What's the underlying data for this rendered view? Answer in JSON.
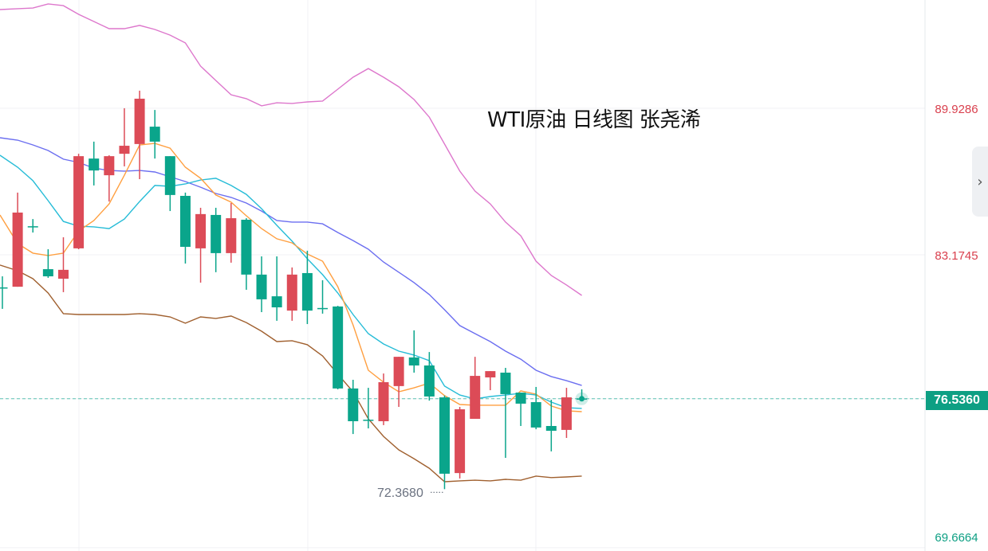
{
  "title": "WTI原油 日线图 张尧浠",
  "chart_data": {
    "type": "candlestick",
    "title": "WTI原油 日线图 张尧浠",
    "y_axis_ticks": [
      "89.9286",
      "83.1745",
      "76.5360",
      "69.6664"
    ],
    "y_tick_values": [
      89.9286,
      83.1745,
      76.536,
      69.6664
    ],
    "ylim": [
      69.6664,
      94.92
    ],
    "current_price": 76.536,
    "current_price_label": "76.5360",
    "min_label": "72.3680",
    "min_value": 72.368,
    "grid": true,
    "colors": {
      "up": "#dc4b57",
      "down": "#0aa58b",
      "upper_band": "#dd77cc",
      "lower_band": "#a0602f",
      "ma_blue": "#6b6ef0",
      "ma_cyan": "#26bcd7",
      "ma_orange": "#ff9f40",
      "axis_red": "#d9404e",
      "axis_green": "#0d9f83"
    },
    "candles": [
      [
        81.67,
        82.18,
        80.68,
        81.67
      ],
      [
        81.7,
        86.04,
        81.7,
        85.12
      ],
      [
        84.49,
        84.82,
        84.2,
        84.49
      ],
      [
        82.51,
        83.43,
        82.11,
        82.18
      ],
      [
        82.07,
        83.98,
        81.45,
        82.48
      ],
      [
        83.47,
        87.83,
        83.43,
        87.72
      ],
      [
        87.61,
        88.39,
        86.37,
        87.06
      ],
      [
        86.84,
        87.76,
        85.63,
        87.72
      ],
      [
        87.83,
        89.93,
        87.25,
        88.2
      ],
      [
        88.28,
        90.74,
        86.66,
        90.37
      ],
      [
        89.08,
        89.85,
        87.61,
        88.39
      ],
      [
        87.72,
        87.72,
        85.19,
        85.93
      ],
      [
        85.89,
        86.04,
        82.77,
        83.54
      ],
      [
        83.47,
        85.34,
        81.89,
        85.05
      ],
      [
        85.01,
        85.34,
        82.37,
        83.25
      ],
      [
        83.25,
        85.56,
        82.81,
        84.86
      ],
      [
        84.79,
        84.86,
        81.56,
        82.26
      ],
      [
        82.26,
        83.1,
        80.53,
        81.12
      ],
      [
        81.26,
        83.1,
        80.13,
        80.75
      ],
      [
        80.6,
        82.59,
        80.13,
        82.26
      ],
      [
        82.33,
        83.36,
        79.98,
        80.6
      ],
      [
        80.72,
        82.0,
        80.46,
        80.71
      ],
      [
        80.79,
        80.82,
        76.97,
        77.01
      ],
      [
        77.01,
        77.41,
        74.91,
        75.5
      ],
      [
        75.57,
        77.04,
        75.17,
        75.57
      ],
      [
        75.5,
        77.7,
        75.32,
        77.3
      ],
      [
        77.12,
        78.47,
        76.16,
        78.47
      ],
      [
        78.44,
        79.69,
        77.74,
        78.07
      ],
      [
        78.07,
        78.69,
        76.45,
        76.64
      ],
      [
        76.6,
        76.68,
        72.368,
        73.08
      ],
      [
        73.11,
        76.16,
        72.86,
        76.05
      ],
      [
        75.61,
        78.47,
        75.61,
        77.59
      ],
      [
        77.52,
        77.81,
        76.93,
        77.81
      ],
      [
        77.74,
        77.96,
        73.81,
        76.75
      ],
      [
        76.82,
        76.82,
        75.28,
        76.31
      ],
      [
        76.38,
        77.08,
        75.13,
        75.21
      ],
      [
        75.28,
        76.49,
        74.11,
        75.06
      ],
      [
        75.1,
        77.04,
        74.73,
        76.6
      ],
      [
        76.55,
        76.97,
        76.53,
        76.536
      ]
    ],
    "candle_format": [
      "open",
      "high",
      "low",
      "close"
    ],
    "series": [
      {
        "key": "upper_band",
        "values": [
          94.48,
          94.52,
          94.55,
          94.74,
          94.66,
          94.26,
          93.93,
          93.6,
          93.6,
          93.75,
          93.56,
          93.3,
          92.94,
          91.87,
          91.21,
          90.55,
          90.37,
          90.04,
          90.18,
          90.15,
          90.22,
          90.26,
          90.81,
          91.36,
          91.76,
          91.36,
          90.92,
          90.33,
          89.52,
          88.28,
          87.03,
          86.11,
          85.52,
          84.68,
          84.05,
          82.88,
          82.22,
          81.78,
          81.3
        ]
      },
      {
        "key": "ma_blue",
        "values": [
          88.57,
          88.46,
          88.24,
          87.98,
          87.58,
          87.43,
          87.17,
          87.06,
          87.03,
          87.06,
          86.99,
          86.77,
          86.55,
          86.29,
          86.0,
          85.82,
          85.56,
          85.19,
          84.75,
          84.68,
          84.68,
          84.6,
          84.2,
          83.83,
          83.43,
          82.84,
          82.37,
          81.89,
          81.34,
          80.64,
          79.91,
          79.54,
          79.17,
          78.73,
          78.36,
          77.85,
          77.56,
          77.37,
          77.15
        ]
      },
      {
        "key": "ma_cyan",
        "values": [
          87.76,
          87.21,
          86.59,
          85.67,
          84.71,
          84.49,
          84.46,
          84.38,
          84.82,
          85.63,
          86.37,
          86.33,
          86.44,
          86.62,
          86.7,
          86.37,
          85.96,
          85.3,
          84.53,
          83.8,
          82.99,
          82.26,
          81.41,
          80.42,
          79.54,
          79.06,
          78.73,
          78.55,
          78.29,
          77.12,
          76.71,
          76.53,
          76.64,
          76.71,
          76.79,
          76.71,
          76.38,
          76.12,
          76.09
        ]
      },
      {
        "key": "ma_orange",
        "values": [
          85.01,
          83.69,
          83.25,
          83.14,
          83.25,
          84.27,
          84.75,
          85.52,
          86.84,
          88.24,
          88.31,
          88.09,
          87.21,
          86.7,
          85.93,
          85.6,
          84.97,
          84.38,
          83.91,
          83.72,
          83.21,
          82.88,
          81.7,
          79.94,
          77.85,
          77.3,
          76.86,
          77.04,
          77.26,
          76.68,
          76.27,
          76.24,
          76.24,
          76.24,
          76.9,
          76.75,
          76.2,
          75.98,
          75.94
        ]
      },
      {
        "key": "lower_band",
        "values": [
          82.7,
          82.44,
          82.07,
          81.41,
          80.46,
          80.42,
          80.42,
          80.42,
          80.42,
          80.46,
          80.42,
          80.31,
          80.02,
          80.31,
          80.24,
          80.35,
          80.05,
          79.65,
          79.17,
          79.21,
          79.03,
          78.51,
          77.67,
          76.86,
          75.61,
          74.8,
          74.18,
          73.77,
          73.33,
          72.71,
          72.75,
          72.78,
          72.75,
          72.82,
          72.78,
          72.97,
          72.9,
          72.93,
          72.97
        ]
      }
    ]
  },
  "ui": {
    "collapse_icon": "chevron-right-icon",
    "collapse_glyph": "›"
  }
}
